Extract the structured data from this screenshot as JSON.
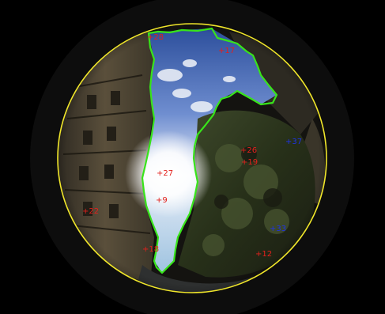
{
  "colors": {
    "background": "#000000",
    "horizon_circle": "#f0e62a",
    "sky_boundary": "#38e41a",
    "label_red": "#e3201c",
    "label_blue": "#1e33e6"
  },
  "image": {
    "content": "fisheye-sky-photo",
    "icon": "sun-glare"
  },
  "labels": [
    {
      "text": "+28",
      "color": "red"
    },
    {
      "text": "+17",
      "color": "red"
    },
    {
      "text": "+37",
      "color": "blue"
    },
    {
      "text": "+26",
      "color": "red"
    },
    {
      "text": "+19",
      "color": "red"
    },
    {
      "text": "+27",
      "color": "red"
    },
    {
      "text": "+9",
      "color": "red"
    },
    {
      "text": "+22",
      "color": "red"
    },
    {
      "text": "+33",
      "color": "blue"
    },
    {
      "text": "+18",
      "color": "red"
    },
    {
      "text": "+12",
      "color": "red"
    }
  ]
}
